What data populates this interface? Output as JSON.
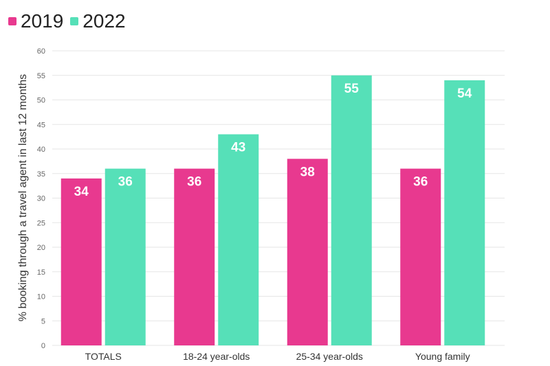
{
  "chart_data": {
    "type": "bar",
    "categories": [
      "TOTALS",
      "18-24 year-olds",
      "25-34 year-olds",
      "Young family"
    ],
    "series": [
      {
        "name": "2019",
        "color": "#e8398f",
        "values": [
          34,
          36,
          38,
          36
        ]
      },
      {
        "name": "2022",
        "color": "#56e0b8",
        "values": [
          36,
          43,
          55,
          54
        ]
      }
    ],
    "title": "",
    "xlabel": "",
    "ylabel": "% booking through a travel agent in last 12 months",
    "ylim": [
      0,
      60
    ],
    "yticks": [
      0,
      5,
      10,
      15,
      20,
      25,
      30,
      35,
      40,
      45,
      50,
      55,
      60
    ],
    "grid": true,
    "legend_position": "top-left"
  }
}
